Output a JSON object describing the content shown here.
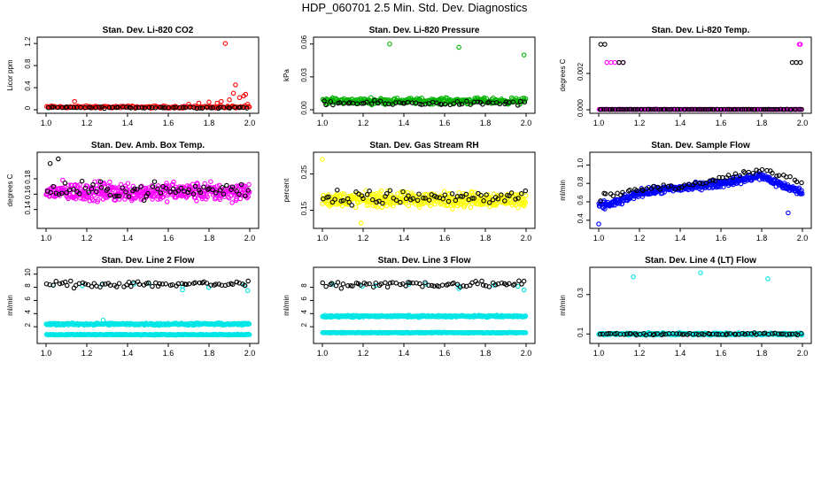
{
  "figure": {
    "title": "HDP_060701  2.5 Min. Std. Dev. Diagnostics"
  },
  "chart_data": [
    {
      "id": "co2",
      "type": "scatter",
      "title": "Stan. Dev. Li-820 CO2",
      "ylabel": "Licor ppm",
      "xlabel": "",
      "xlim": [
        1.0,
        2.0
      ],
      "ylim": [
        0,
        1.25
      ],
      "xticks": [
        "1.0",
        "1.2",
        "1.4",
        "1.6",
        "1.8",
        "2.0"
      ],
      "yticks": [
        {
          "v": 0,
          "label": "0"
        },
        {
          "v": 0.4,
          "label": "0.4"
        },
        {
          "v": 0.8,
          "label": "0.8"
        },
        {
          "v": 1.2,
          "label": "1.2"
        }
      ],
      "series": [
        {
          "name": "colored",
          "color": "#ff0000",
          "base": 0.05,
          "spread": 0.03,
          "count": 150,
          "extra": [
            [
              1.14,
              0.15
            ],
            [
              1.86,
              0.15
            ],
            [
              1.88,
              1.2
            ],
            [
              1.9,
              0.18
            ],
            [
              1.92,
              0.3
            ],
            [
              1.93,
              0.45
            ],
            [
              1.95,
              0.22
            ],
            [
              1.97,
              0.25
            ],
            [
              1.98,
              0.28
            ],
            [
              1.75,
              0.12
            ],
            [
              1.8,
              0.14
            ],
            [
              1.84,
              0.12
            ],
            [
              1.99,
              0.1
            ],
            [
              1.7,
              0.1
            ]
          ]
        },
        {
          "name": "black",
          "color": "#000000",
          "base": 0.04,
          "spread": 0.02,
          "count": 60,
          "extra": []
        }
      ]
    },
    {
      "id": "pressure",
      "type": "scatter",
      "title": "Stan. Dev. Li-820 Pressure",
      "ylabel": "kPa",
      "xlabel": "",
      "xlim": [
        1.0,
        2.0
      ],
      "ylim": [
        0,
        0.063
      ],
      "xticks": [
        "1.0",
        "1.2",
        "1.4",
        "1.6",
        "1.8",
        "2.0"
      ],
      "yticks": [
        {
          "v": 0,
          "label": "0.00"
        },
        {
          "v": 0.03,
          "label": "0.03"
        },
        {
          "v": 0.06,
          "label": "0.06"
        }
      ],
      "series": [
        {
          "name": "colored",
          "color": "#00b400",
          "base": 0.008,
          "spread": 0.004,
          "count": 320,
          "extra": [
            [
              1.33,
              0.06
            ],
            [
              1.67,
              0.057
            ],
            [
              1.99,
              0.05
            ],
            [
              1.02,
              0.01
            ],
            [
              1.05,
              0.011
            ]
          ]
        },
        {
          "name": "black",
          "color": "#000000",
          "base": 0.006,
          "spread": 0.003,
          "count": 60,
          "extra": []
        }
      ]
    },
    {
      "id": "temp",
      "type": "scatter",
      "title": "Stan. Dev. Li-820 Temp.",
      "ylabel": "degrees C",
      "xlabel": "",
      "xlim": [
        1.0,
        2.0
      ],
      "ylim": [
        0,
        0.0038
      ],
      "xticks": [
        "1.0",
        "1.2",
        "1.4",
        "1.6",
        "1.8",
        "2.0"
      ],
      "yticks": [
        {
          "v": 0,
          "label": "0.000"
        },
        {
          "v": 0.002,
          "label": "0.002"
        }
      ],
      "series": [
        {
          "name": "colored",
          "color": "#ff00ff",
          "base": 2e-05,
          "spread": 1e-05,
          "count": 200,
          "extra": [
            [
              1.04,
              0.0026
            ],
            [
              1.06,
              0.0026
            ],
            [
              1.08,
              0.0026
            ],
            [
              1.1,
              0.0026
            ],
            [
              1.12,
              0.0026
            ],
            [
              1.99,
              0.0036
            ],
            [
              1.985,
              0.0036
            ]
          ]
        },
        {
          "name": "black",
          "color": "#000000",
          "base": 2e-05,
          "spread": 1e-05,
          "count": 90,
          "extra": [
            [
              1.01,
              0.0036
            ],
            [
              1.03,
              0.0036
            ],
            [
              1.1,
              0.0026
            ],
            [
              1.12,
              0.0026
            ],
            [
              1.95,
              0.0026
            ],
            [
              1.97,
              0.0026
            ],
            [
              1.99,
              0.0026
            ]
          ]
        }
      ]
    },
    {
      "id": "ambbox",
      "type": "scatter",
      "title": "Stan. Dev. Amb. Box Temp.",
      "ylabel": "degrees C",
      "xlabel": "",
      "xlim": [
        1.0,
        2.0
      ],
      "ylim": [
        0.12,
        0.21
      ],
      "xticks": [
        "1.0",
        "1.2",
        "1.4",
        "1.6",
        "1.8",
        "2.0"
      ],
      "yticks": [
        {
          "v": 0.14,
          "label": "0.14"
        },
        {
          "v": 0.16,
          "label": "0.16"
        },
        {
          "v": 0.18,
          "label": "0.18"
        }
      ],
      "series": [
        {
          "name": "colored",
          "color": "#ff00ff",
          "base": 0.163,
          "spread": 0.018,
          "count": 420,
          "extra": []
        },
        {
          "name": "black",
          "color": "#000000",
          "base": 0.165,
          "spread": 0.015,
          "count": 70,
          "extra": [
            [
              1.06,
              0.206
            ],
            [
              1.02,
              0.2
            ]
          ]
        }
      ]
    },
    {
      "id": "gasrh",
      "type": "scatter",
      "title": "Stan. Dev. Gas Stream RH",
      "ylabel": "percent",
      "xlabel": "",
      "xlim": [
        1.0,
        2.0
      ],
      "ylim": [
        0.11,
        0.3
      ],
      "xticks": [
        "1.0",
        "1.2",
        "1.4",
        "1.6",
        "1.8",
        "2.0"
      ],
      "yticks": [
        {
          "v": 0.15,
          "label": "0.15"
        },
        {
          "v": 0.25,
          "label": "0.25"
        }
      ],
      "series": [
        {
          "name": "colored",
          "color": "#ffff00",
          "base": 0.18,
          "spread": 0.03,
          "count": 420,
          "extra": [
            [
              1.0,
              0.29
            ],
            [
              1.19,
              0.115
            ]
          ]
        },
        {
          "name": "black",
          "color": "#000000",
          "base": 0.185,
          "spread": 0.03,
          "count": 70,
          "extra": []
        }
      ]
    },
    {
      "id": "sampleflow",
      "type": "scatter",
      "title": "Stan. Dev. Sample Flow",
      "ylabel": "ml/min",
      "xlabel": "",
      "xlim": [
        1.0,
        2.0
      ],
      "ylim": [
        0.35,
        1.1
      ],
      "xticks": [
        "1.0",
        "1.2",
        "1.4",
        "1.6",
        "1.8",
        "2.0"
      ],
      "yticks": [
        {
          "v": 0.4,
          "label": "0.4"
        },
        {
          "v": 0.6,
          "label": "0.6"
        },
        {
          "v": 0.8,
          "label": "0.8"
        },
        {
          "v": 1.0,
          "label": "1.0"
        }
      ],
      "series": [
        {
          "name": "colored",
          "color": "#0000ff",
          "trend": [
            [
              1.0,
              0.55
            ],
            [
              1.1,
              0.6
            ],
            [
              1.2,
              0.7
            ],
            [
              1.4,
              0.75
            ],
            [
              1.6,
              0.8
            ],
            [
              1.8,
              0.88
            ],
            [
              1.9,
              0.78
            ],
            [
              2.0,
              0.7
            ]
          ],
          "spread": 0.06,
          "count": 420,
          "extra": [
            [
              1.0,
              0.36
            ],
            [
              1.93,
              0.48
            ]
          ]
        },
        {
          "name": "black",
          "color": "#000000",
          "trend": [
            [
              1.0,
              0.65
            ],
            [
              1.2,
              0.74
            ],
            [
              1.5,
              0.8
            ],
            [
              1.8,
              0.95
            ],
            [
              2.0,
              0.8
            ]
          ],
          "spread": 0.05,
          "count": 60,
          "extra": []
        }
      ]
    },
    {
      "id": "line2",
      "type": "scatter",
      "title": "Stan. Dev. Line 2 Flow",
      "ylabel": "ml/min",
      "xlabel": "",
      "xlim": [
        1.0,
        2.0
      ],
      "ylim": [
        0,
        10.5
      ],
      "xticks": [
        "1.0",
        "1.2",
        "1.4",
        "1.6",
        "1.8",
        "2.0"
      ],
      "yticks": [
        {
          "v": 2,
          "label": "2"
        },
        {
          "v": 4,
          "label": "4"
        },
        {
          "v": 6,
          "label": "6"
        },
        {
          "v": 8,
          "label": "8"
        },
        {
          "v": 10,
          "label": "10"
        }
      ],
      "series": [
        {
          "name": "cyan-upper",
          "color": "#00e5e5",
          "base": 2.4,
          "spread": 0.25,
          "count": 300,
          "extra": [
            [
              1.28,
              3.0
            ]
          ]
        },
        {
          "name": "cyan-lower",
          "color": "#00e5e5",
          "base": 0.8,
          "spread": 0.1,
          "count": 300,
          "extra": []
        },
        {
          "name": "cyan-high",
          "color": "#00e5e5",
          "base": 8.3,
          "spread": 0.4,
          "count": 8,
          "extra": [
            [
              1.67,
              7.6
            ],
            [
              1.99,
              7.5
            ]
          ]
        },
        {
          "name": "black",
          "color": "#000000",
          "base": 8.5,
          "spread": 0.8,
          "count": 70,
          "extra": []
        }
      ]
    },
    {
      "id": "line3",
      "type": "scatter",
      "title": "Stan. Dev. Line 3 Flow",
      "ylabel": "ml/min",
      "xlabel": "",
      "xlim": [
        1.0,
        2.0
      ],
      "ylim": [
        0,
        10.5
      ],
      "xticks": [
        "1.0",
        "1.2",
        "1.4",
        "1.6",
        "1.8",
        "2.0"
      ],
      "yticks": [
        {
          "v": 2,
          "label": "2"
        },
        {
          "v": 4,
          "label": "4"
        },
        {
          "v": 6,
          "label": "6"
        },
        {
          "v": 8,
          "label": "8"
        }
      ],
      "series": [
        {
          "name": "cyan-upper",
          "color": "#00e5e5",
          "base": 3.6,
          "spread": 0.2,
          "count": 300,
          "extra": []
        },
        {
          "name": "cyan-lower",
          "color": "#00e5e5",
          "base": 1.1,
          "spread": 0.1,
          "count": 300,
          "extra": []
        },
        {
          "name": "cyan-high",
          "color": "#00e5e5",
          "base": 8.3,
          "spread": 0.4,
          "count": 8,
          "extra": [
            [
              1.67,
              7.8
            ],
            [
              1.99,
              7.6
            ]
          ]
        },
        {
          "name": "black",
          "color": "#000000",
          "base": 8.5,
          "spread": 0.8,
          "count": 70,
          "extra": []
        }
      ]
    },
    {
      "id": "line4",
      "type": "scatter",
      "title": "Stan. Dev. Line 4 (LT) Flow",
      "ylabel": "ml/min",
      "xlabel": "",
      "xlim": [
        1.0,
        2.0
      ],
      "ylim": [
        0.07,
        0.42
      ],
      "xticks": [
        "1.0",
        "1.2",
        "1.4",
        "1.6",
        "1.8",
        "2.0"
      ],
      "yticks": [
        {
          "v": 0.1,
          "label": "0.1"
        },
        {
          "v": 0.3,
          "label": "0.3"
        }
      ],
      "series": [
        {
          "name": "cyan",
          "color": "#00e5e5",
          "base": 0.1,
          "spread": 0.008,
          "count": 400,
          "extra": [
            [
              1.17,
              0.39
            ],
            [
              1.5,
              0.41
            ],
            [
              1.83,
              0.38
            ]
          ]
        },
        {
          "name": "black",
          "color": "#000000",
          "base": 0.1,
          "spread": 0.008,
          "count": 70,
          "extra": []
        }
      ]
    }
  ]
}
